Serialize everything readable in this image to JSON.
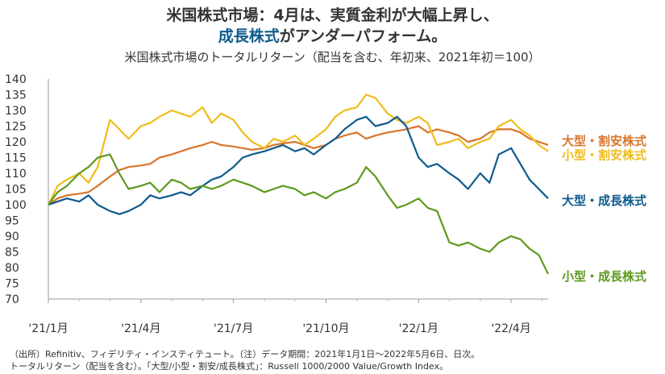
{
  "header": {
    "title_line1": "米国株式市場：4月は、実質金利が大幅上昇し、",
    "title_line2_highlight": "成長株式",
    "title_line2_rest": "がアンダーパフォーム。",
    "subtitle": "米国株式市場のトータルリターン（配当を含む、年初来、2021年初＝100）"
  },
  "footnote": {
    "line1": "（出所）Refinitiv、フィデリティ・インスティテュート。（注）データ期間：2021年1月1日～2022年5月6日、日次。",
    "line2": "トータルリターン（配当を含む）。「大型/小型・割安/成長株式」：Russell 1000/2000 Value/Growth Index。"
  },
  "chart_data": {
    "type": "line",
    "title": "米国株式市場のトータルリターン（配当を含む、年初来、2021年初＝100）",
    "xlabel": "",
    "ylabel": "",
    "ylim": [
      70,
      140
    ],
    "yticks": [
      140,
      135,
      130,
      125,
      120,
      115,
      110,
      105,
      100,
      95,
      90,
      85,
      80,
      75,
      70
    ],
    "x_tick_labels": [
      "'21/1月",
      "'21/4月",
      "'21/7月",
      "'21/10月",
      "'22/1月",
      "'22/4月"
    ],
    "x_tick_months": [
      0,
      3,
      6,
      9,
      12,
      15
    ],
    "x_range_months": [
      0,
      16.2
    ],
    "grid": false,
    "series": [
      {
        "name": "大型・割安株式",
        "color": "#d9752b",
        "x": [
          0,
          0.3,
          0.6,
          1.0,
          1.3,
          1.6,
          2.0,
          2.3,
          2.6,
          3.0,
          3.3,
          3.6,
          4.0,
          4.3,
          4.6,
          5.0,
          5.3,
          5.6,
          6.0,
          6.3,
          6.6,
          7.0,
          7.3,
          7.6,
          8.0,
          8.3,
          8.6,
          9.0,
          9.3,
          9.6,
          10.0,
          10.3,
          10.6,
          11.0,
          11.3,
          11.6,
          12.0,
          12.3,
          12.6,
          13.0,
          13.3,
          13.6,
          14.0,
          14.3,
          14.6,
          15.0,
          15.3,
          15.6,
          15.9,
          16.2
        ],
        "values": [
          100,
          102,
          103,
          103.5,
          104,
          106,
          109,
          111,
          112,
          112.5,
          113,
          115,
          116,
          117,
          118,
          119,
          120,
          119,
          118.5,
          118,
          117.5,
          118,
          119,
          119.5,
          120,
          119,
          118,
          119,
          121,
          122,
          123,
          121,
          122,
          123,
          123.5,
          124,
          125,
          123,
          124,
          123,
          122,
          120,
          121,
          123,
          124,
          124,
          123,
          121,
          120,
          119
        ]
      },
      {
        "name": "小型・割安株式",
        "color": "#f0bc1a",
        "x": [
          0,
          0.3,
          0.6,
          1.0,
          1.3,
          1.6,
          2.0,
          2.3,
          2.6,
          3.0,
          3.3,
          3.6,
          4.0,
          4.3,
          4.6,
          5.0,
          5.3,
          5.6,
          6.0,
          6.3,
          6.6,
          7.0,
          7.3,
          7.6,
          8.0,
          8.3,
          8.6,
          9.0,
          9.3,
          9.6,
          10.0,
          10.3,
          10.6,
          11.0,
          11.3,
          11.6,
          12.0,
          12.3,
          12.6,
          13.0,
          13.3,
          13.6,
          14.0,
          14.3,
          14.6,
          15.0,
          15.3,
          15.6,
          15.9,
          16.2
        ],
        "values": [
          100,
          106,
          108,
          110,
          107,
          112,
          127,
          124,
          121,
          125,
          126,
          128,
          130,
          129,
          128,
          131,
          126,
          129,
          127,
          123,
          120,
          118,
          121,
          120,
          122,
          119,
          121,
          124,
          128,
          130,
          131,
          135,
          134,
          129,
          127,
          126,
          128,
          126,
          119,
          120,
          121,
          118,
          120,
          121,
          125,
          127,
          124,
          122,
          119,
          117
        ]
      },
      {
        "name": "大型・成長株式",
        "color": "#0e5b8c",
        "x": [
          0,
          0.3,
          0.6,
          1.0,
          1.3,
          1.6,
          2.0,
          2.3,
          2.6,
          3.0,
          3.3,
          3.6,
          4.0,
          4.3,
          4.6,
          5.0,
          5.3,
          5.6,
          6.0,
          6.3,
          6.6,
          7.0,
          7.3,
          7.6,
          8.0,
          8.3,
          8.6,
          9.0,
          9.3,
          9.6,
          10.0,
          10.3,
          10.6,
          11.0,
          11.3,
          11.6,
          12.0,
          12.3,
          12.6,
          13.0,
          13.3,
          13.6,
          14.0,
          14.3,
          14.6,
          15.0,
          15.3,
          15.6,
          15.9,
          16.2
        ],
        "values": [
          100,
          101,
          102,
          101,
          103,
          100,
          98,
          97,
          98,
          100,
          103,
          102,
          103,
          104,
          103,
          106,
          108,
          109,
          112,
          115,
          116,
          117,
          118,
          119,
          117,
          118,
          116,
          119,
          121,
          124,
          127,
          128,
          125,
          126,
          128,
          125,
          115,
          112,
          113,
          110,
          108,
          105,
          110,
          107,
          116,
          118,
          113,
          108,
          105,
          102
        ]
      },
      {
        "name": "小型・成長株式",
        "color": "#5e9a1f",
        "x": [
          0,
          0.3,
          0.6,
          1.0,
          1.3,
          1.6,
          2.0,
          2.3,
          2.6,
          3.0,
          3.3,
          3.6,
          4.0,
          4.3,
          4.6,
          5.0,
          5.3,
          5.6,
          6.0,
          6.3,
          6.6,
          7.0,
          7.3,
          7.6,
          8.0,
          8.3,
          8.6,
          9.0,
          9.3,
          9.6,
          10.0,
          10.3,
          10.6,
          11.0,
          11.3,
          11.6,
          12.0,
          12.3,
          12.6,
          13.0,
          13.3,
          13.6,
          14.0,
          14.3,
          14.6,
          15.0,
          15.3,
          15.6,
          15.9,
          16.2
        ],
        "values": [
          100,
          104,
          106,
          110,
          112,
          115,
          116,
          110,
          105,
          106,
          107,
          104,
          108,
          107,
          105,
          106,
          105,
          106,
          108,
          107,
          106,
          104,
          105,
          106,
          105,
          103,
          104,
          102,
          104,
          105,
          107,
          112,
          109,
          103,
          99,
          100,
          102,
          99,
          98,
          88,
          87,
          88,
          86,
          85,
          88,
          90,
          89,
          86,
          84,
          78
        ]
      }
    ],
    "labels": [
      {
        "text": "大型・割安株式",
        "color": "#d9752b",
        "y": 120.5
      },
      {
        "text": "小型・割安株式",
        "color": "#f0bc1a",
        "y": 116
      },
      {
        "text": "大型・成長株式",
        "color": "#0e5b8c",
        "y": 101.5
      },
      {
        "text": "小型・成長株式",
        "color": "#5e9a1f",
        "y": 77.5
      }
    ]
  }
}
